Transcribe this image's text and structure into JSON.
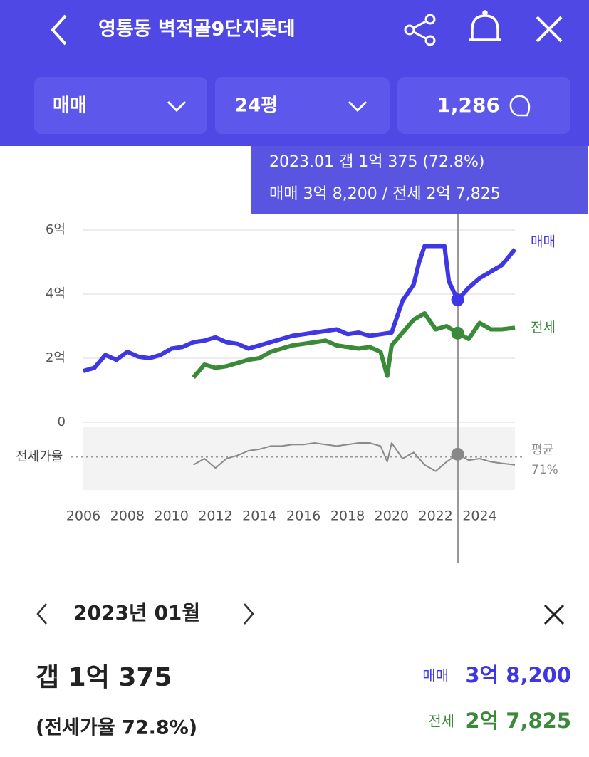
{
  "header": {
    "title": "영통동 벽적골9단지롯데",
    "filters": [
      "매매",
      "24평",
      "1,286"
    ]
  },
  "tooltip": {
    "line1": "2023.01  갭 1억 375 (72.8%)",
    "line2": "매매 3억 8,200 / 전세 2억 7,825"
  },
  "chart_data": [
    {
      "type": "line",
      "xlim": [
        2006,
        2025.6
      ],
      "xticks": [
        2006,
        2008,
        2010,
        2012,
        2014,
        2016,
        2018,
        2020,
        2022,
        2024
      ],
      "ylim": [
        0,
        6
      ],
      "yticks": [
        0,
        {
          "value": 2,
          "label": "2억"
        },
        {
          "value": 4,
          "label": "4억"
        },
        {
          "value": 6,
          "label": "6억"
        }
      ],
      "grid": true,
      "series": [
        {
          "name": "매매",
          "color": "#3f37e3",
          "x": [
            2006,
            2006.5,
            2007,
            2007.5,
            2008,
            2008.5,
            2009,
            2009.5,
            2010,
            2010.5,
            2011,
            2011.5,
            2012,
            2012.5,
            2013,
            2013.5,
            2014,
            2014.5,
            2015,
            2015.5,
            2016,
            2016.5,
            2017,
            2017.5,
            2018,
            2018.5,
            2019,
            2019.5,
            2020,
            2020.5,
            2021,
            2021.25,
            2021.5,
            2022,
            2022.4,
            2022.6,
            2023,
            2023.5,
            2024,
            2024.5,
            2025,
            2025.6
          ],
          "values": [
            1.6,
            1.7,
            2.1,
            1.95,
            2.2,
            2.05,
            2.0,
            2.1,
            2.3,
            2.35,
            2.5,
            2.55,
            2.65,
            2.5,
            2.45,
            2.3,
            2.4,
            2.5,
            2.6,
            2.7,
            2.75,
            2.8,
            2.85,
            2.9,
            2.75,
            2.8,
            2.7,
            2.75,
            2.8,
            3.8,
            4.3,
            5.0,
            5.5,
            5.5,
            5.5,
            4.4,
            3.82,
            4.2,
            4.5,
            4.7,
            4.9,
            5.4
          ]
        },
        {
          "name": "전세",
          "color": "#3a8a3a",
          "x": [
            2011,
            2011.5,
            2012,
            2012.5,
            2013,
            2013.5,
            2014,
            2014.5,
            2015,
            2015.5,
            2016,
            2016.5,
            2017,
            2017.5,
            2018,
            2018.5,
            2019,
            2019.5,
            2019.8,
            2020,
            2020.5,
            2021,
            2021.5,
            2022,
            2022.5,
            2023,
            2023.5,
            2024,
            2024.5,
            2025,
            2025.6
          ],
          "values": [
            1.4,
            1.8,
            1.7,
            1.75,
            1.85,
            1.95,
            2.0,
            2.2,
            2.3,
            2.4,
            2.45,
            2.5,
            2.55,
            2.4,
            2.35,
            2.3,
            2.35,
            2.2,
            1.45,
            2.4,
            2.8,
            3.2,
            3.4,
            2.9,
            3.0,
            2.7825,
            2.6,
            3.1,
            2.9,
            2.9,
            2.95
          ]
        }
      ]
    },
    {
      "type": "line",
      "ylabel": "전세가율",
      "xlim": [
        2006,
        2025.6
      ],
      "ylim": [
        50,
        90
      ],
      "average": {
        "name": "평균",
        "value": 71,
        "label": "71%"
      },
      "series": [
        {
          "name": "전세가율",
          "color": "#8a8a8a",
          "x": [
            2011,
            2011.5,
            2012,
            2012.5,
            2013,
            2013.5,
            2014,
            2014.5,
            2015,
            2015.5,
            2016,
            2016.5,
            2017,
            2017.5,
            2018,
            2018.5,
            2019,
            2019.5,
            2019.8,
            2020,
            2020.5,
            2021,
            2021.5,
            2022,
            2022.5,
            2023,
            2023.5,
            2024,
            2024.5,
            2025,
            2025.6
          ],
          "values": [
            66,
            70,
            64,
            70,
            72,
            75,
            76,
            78,
            78,
            79,
            79,
            80,
            79,
            78,
            79,
            80,
            80,
            78,
            68,
            80,
            70,
            74,
            66,
            62,
            68,
            72.8,
            69,
            70,
            68,
            67,
            66
          ]
        }
      ]
    }
  ],
  "detail": {
    "date": "2023년 01월",
    "gap": "갭 1억 375",
    "ratio": {
      "value": 72.8,
      "label": "(전세가율 72.8%)"
    },
    "sale": {
      "value": 3.82,
      "label": "3억 8,200"
    },
    "jeonse": {
      "value": 2.7825,
      "label": "2억 7,825"
    }
  }
}
